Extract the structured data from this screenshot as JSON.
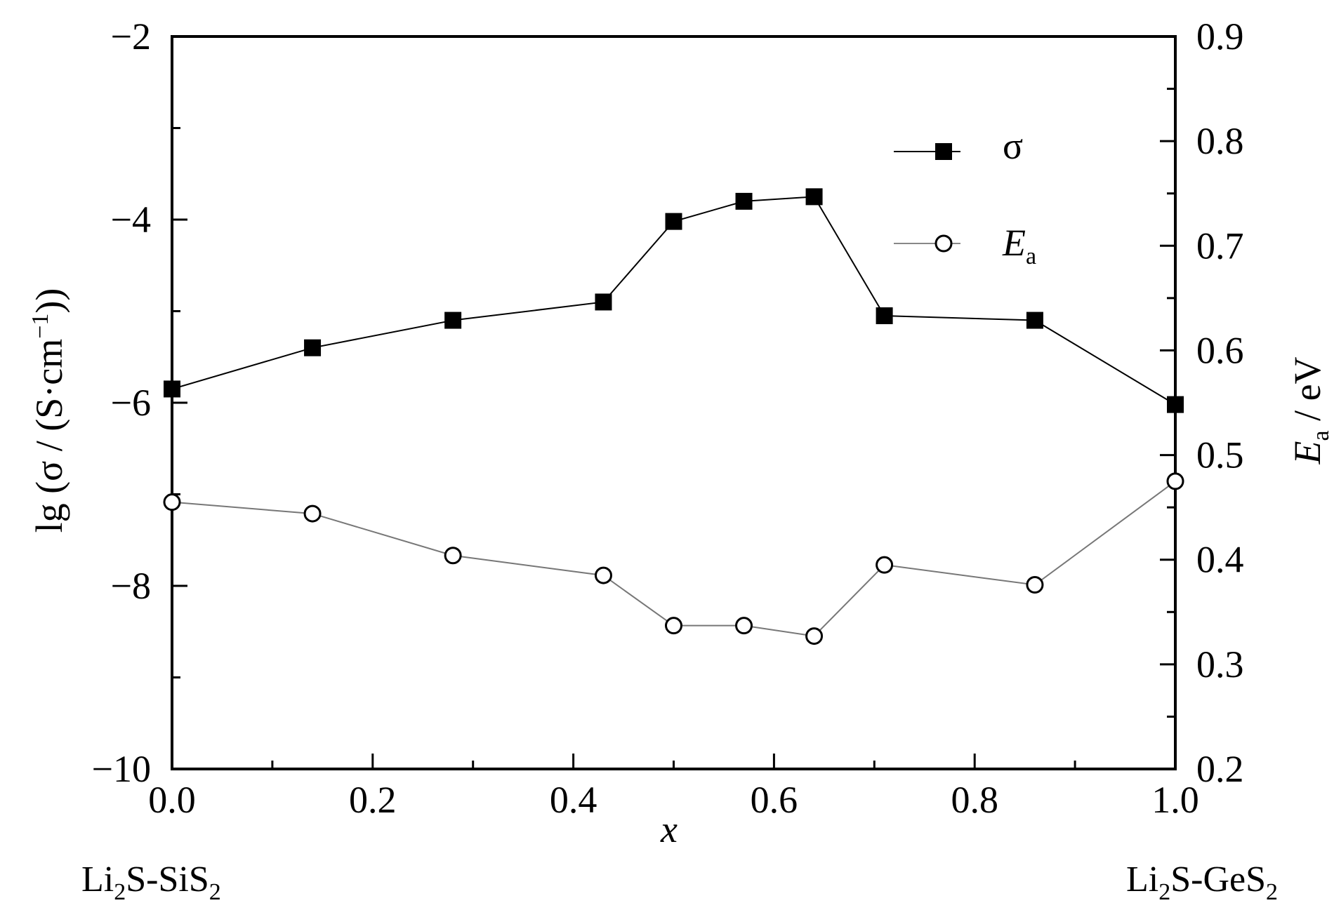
{
  "chart_data": {
    "type": "line",
    "x": [
      0.0,
      0.14,
      0.28,
      0.43,
      0.5,
      0.57,
      0.64,
      0.71,
      0.86,
      1.0
    ],
    "series": [
      {
        "name": "σ",
        "axis": "left",
        "marker": "filled-square",
        "values": [
          -5.85,
          -5.4,
          -5.1,
          -4.9,
          -4.02,
          -3.8,
          -3.75,
          -5.05,
          -5.1,
          -6.02
        ]
      },
      {
        "name": "E",
        "name_sub": "a",
        "axis": "right",
        "marker": "open-circle",
        "values": [
          0.455,
          0.444,
          0.404,
          0.385,
          0.337,
          0.337,
          0.327,
          0.395,
          0.376,
          0.475
        ]
      }
    ],
    "xlabel": "x",
    "xlim": [
      0.0,
      1.0
    ],
    "xticks": [
      0.0,
      0.2,
      0.4,
      0.6,
      0.8,
      1.0
    ],
    "xtick_labels": [
      "0.0",
      "0.2",
      "0.4",
      "0.6",
      "0.8",
      "1.0"
    ],
    "ylabel_left": {
      "pre": "lg (σ / (S·cm",
      "sup": "−1",
      "post": "))"
    },
    "ylim_left": [
      -10,
      -2
    ],
    "yticks_left": [
      -10,
      -8,
      -6,
      -4,
      -2
    ],
    "ytick_labels_left": [
      "−10",
      "−8",
      "−6",
      "−4",
      "−2"
    ],
    "ylabel_right": {
      "main": "E",
      "sub": "a",
      "post": " / eV"
    },
    "ylim_right": [
      0.2,
      0.9
    ],
    "yticks_right": [
      0.2,
      0.3,
      0.4,
      0.5,
      0.6,
      0.7,
      0.8,
      0.9
    ],
    "ytick_labels_right": [
      "0.2",
      "0.3",
      "0.4",
      "0.5",
      "0.6",
      "0.7",
      "0.8",
      "0.9"
    ],
    "legend_position": "top-right",
    "grid": false,
    "endmember_left": {
      "a": "Li",
      "a_sub": "2",
      "b": "S-SiS",
      "b_sub": "2"
    },
    "endmember_right": {
      "a": "Li",
      "a_sub": "2",
      "b": "S-GeS",
      "b_sub": "2"
    },
    "colors": {
      "line": "#000000",
      "marker_fill": "#000000",
      "open_fill": "#ffffff"
    }
  }
}
